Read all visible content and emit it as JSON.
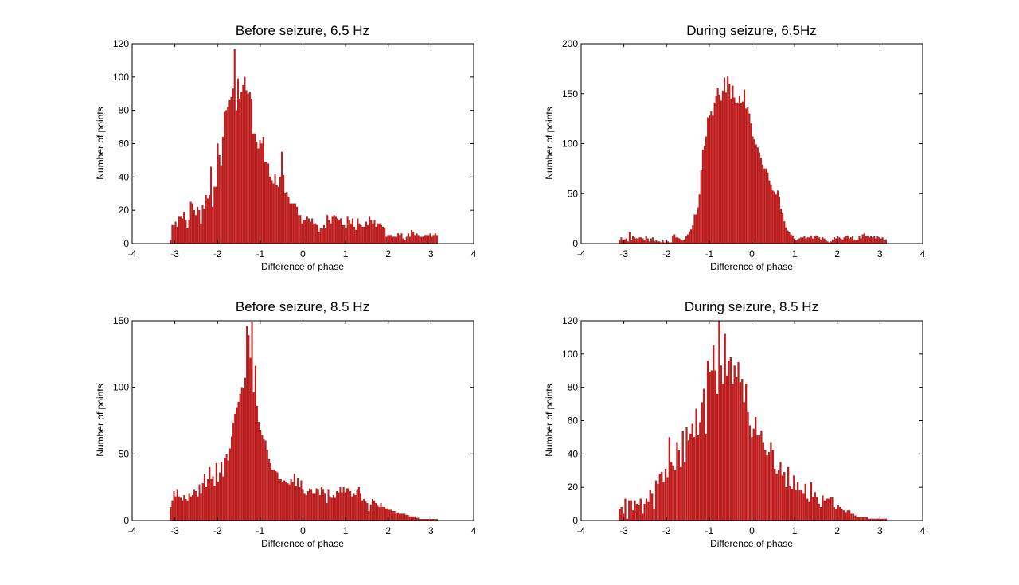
{
  "colors": {
    "bar": "#cc1818",
    "bar_edge": "#8b0000",
    "axis": "#000000",
    "background": "#ffffff"
  },
  "chart_data": [
    {
      "type": "bar",
      "title": "Before seizure, 6.5 Hz",
      "xlabel": "Difference of phase",
      "ylabel": "Number of points",
      "xlim": [
        -4,
        4
      ],
      "ylim": [
        0,
        120
      ],
      "xticks": [
        -4,
        -3,
        -2,
        -1,
        0,
        1,
        2,
        3,
        4
      ],
      "yticks": [
        0,
        20,
        40,
        60,
        80,
        100,
        120
      ],
      "x_start": -3.1,
      "x_end": 3.14,
      "values": [
        2,
        11,
        11,
        13,
        10,
        16,
        16,
        15,
        19,
        14,
        9,
        14,
        25,
        24,
        20,
        17,
        22,
        20,
        12,
        23,
        21,
        29,
        27,
        29,
        46,
        22,
        34,
        34,
        60,
        53,
        47,
        64,
        79,
        80,
        82,
        86,
        88,
        93,
        117,
        80,
        99,
        87,
        91,
        95,
        100,
        92,
        90,
        91,
        87,
        66,
        66,
        61,
        57,
        62,
        60,
        64,
        49,
        49,
        48,
        40,
        38,
        36,
        42,
        35,
        34,
        40,
        55,
        41,
        30,
        31,
        28,
        24,
        24,
        24,
        24,
        22,
        17,
        17,
        12,
        14,
        14,
        16,
        15,
        13,
        15,
        12,
        12,
        11,
        7,
        9,
        9,
        11,
        9,
        17,
        14,
        12,
        16,
        17,
        16,
        15,
        14,
        15,
        11,
        11,
        9,
        16,
        14,
        12,
        15,
        10,
        8,
        15,
        12,
        11,
        10,
        10,
        13,
        11,
        16,
        14,
        12,
        14,
        10,
        12,
        12,
        11,
        10,
        9,
        4,
        5,
        5,
        5,
        4,
        4,
        4,
        6,
        5,
        6,
        3,
        2,
        4,
        6,
        4,
        8,
        7,
        5,
        6,
        5,
        4,
        4,
        4,
        5,
        5,
        5,
        6,
        4,
        5,
        6,
        5
      ]
    },
    {
      "type": "bar",
      "title": "During seizure, 6.5Hz",
      "xlabel": "Difference of phase",
      "ylabel": "Number of points",
      "xlim": [
        -4,
        4
      ],
      "ylim": [
        0,
        200
      ],
      "xticks": [
        -4,
        -3,
        -2,
        -1,
        0,
        1,
        2,
        3,
        4
      ],
      "yticks": [
        0,
        50,
        100,
        150,
        200
      ],
      "x_start": -3.1,
      "x_end": 3.14,
      "values": [
        3,
        6,
        3,
        4,
        5,
        2,
        11,
        3,
        7,
        6,
        5,
        5,
        6,
        6,
        5,
        3,
        7,
        5,
        2,
        5,
        6,
        2,
        3,
        2,
        2,
        1,
        3,
        1,
        3,
        2,
        1,
        1,
        8,
        9,
        6,
        6,
        5,
        4,
        3,
        4,
        7,
        9,
        12,
        14,
        18,
        29,
        29,
        36,
        49,
        73,
        94,
        98,
        107,
        126,
        128,
        132,
        128,
        141,
        148,
        156,
        149,
        143,
        153,
        166,
        151,
        167,
        160,
        145,
        158,
        146,
        140,
        141,
        148,
        140,
        142,
        154,
        135,
        136,
        130,
        120,
        107,
        104,
        99,
        96,
        91,
        86,
        79,
        75,
        75,
        71,
        63,
        59,
        53,
        52,
        49,
        53,
        47,
        35,
        30,
        22,
        16,
        13,
        11,
        9,
        8,
        5,
        3,
        4,
        5,
        6,
        6,
        7,
        5,
        6,
        6,
        8,
        5,
        7,
        8,
        7,
        6,
        4,
        6,
        5,
        3,
        2,
        1,
        2,
        4,
        6,
        5,
        7,
        6,
        5,
        4,
        6,
        7,
        8,
        5,
        6,
        7,
        4,
        3,
        4,
        7,
        5,
        9,
        10,
        7,
        8,
        6,
        7,
        6,
        7,
        5,
        7,
        6,
        5,
        6,
        3,
        4
      ]
    },
    {
      "type": "bar",
      "title": "Before seizure, 8.5 Hz",
      "xlabel": "Difference of phase",
      "ylabel": "Number of points",
      "xlim": [
        -4,
        4
      ],
      "ylim": [
        0,
        150
      ],
      "xticks": [
        -4,
        -3,
        -2,
        -1,
        0,
        1,
        2,
        3,
        4
      ],
      "yticks": [
        0,
        50,
        100,
        150
      ],
      "x_start": -3.1,
      "x_end": 3.14,
      "values": [
        10,
        15,
        22,
        18,
        23,
        18,
        17,
        15,
        19,
        16,
        15,
        20,
        18,
        19,
        23,
        22,
        18,
        27,
        20,
        28,
        35,
        25,
        31,
        40,
        31,
        33,
        26,
        43,
        29,
        36,
        44,
        33,
        47,
        50,
        45,
        54,
        63,
        73,
        80,
        85,
        89,
        95,
        100,
        99,
        107,
        146,
        139,
        122,
        149,
        96,
        116,
        86,
        74,
        68,
        64,
        61,
        60,
        53,
        46,
        43,
        38,
        38,
        37,
        36,
        31,
        31,
        29,
        30,
        29,
        28,
        27,
        31,
        29,
        35,
        26,
        32,
        25,
        30,
        23,
        20,
        19,
        22,
        24,
        23,
        20,
        20,
        24,
        23,
        19,
        25,
        23,
        20,
        13,
        23,
        18,
        17,
        19,
        17,
        22,
        21,
        25,
        21,
        25,
        21,
        24,
        24,
        22,
        18,
        20,
        19,
        23,
        25,
        20,
        15,
        16,
        14,
        13,
        7,
        12,
        16,
        15,
        13,
        11,
        10,
        13,
        10,
        10,
        9,
        9,
        8,
        8,
        7,
        7,
        6,
        6,
        5,
        5,
        5,
        5,
        4,
        4,
        3,
        3,
        3,
        3,
        2,
        2,
        1,
        1,
        1,
        1,
        1,
        1,
        1,
        1,
        1,
        1,
        1
      ]
    },
    {
      "type": "bar",
      "title": "During seizure, 8.5 Hz",
      "xlabel": "Difference of phase",
      "ylabel": "Number of points",
      "xlim": [
        -4,
        4
      ],
      "ylim": [
        0,
        120
      ],
      "xticks": [
        -4,
        -3,
        -2,
        -1,
        0,
        1,
        2,
        3,
        4
      ],
      "yticks": [
        0,
        20,
        40,
        60,
        80,
        100,
        120
      ],
      "x_start": -3.1,
      "x_end": 3.14,
      "values": [
        7,
        8,
        4,
        13,
        1,
        12,
        12,
        6,
        12,
        10,
        9,
        13,
        4,
        10,
        13,
        11,
        18,
        16,
        7,
        24,
        22,
        28,
        29,
        23,
        31,
        26,
        50,
        35,
        33,
        30,
        47,
        42,
        32,
        54,
        35,
        56,
        48,
        52,
        58,
        50,
        67,
        51,
        59,
        71,
        79,
        52,
        96,
        89,
        90,
        105,
        90,
        76,
        120,
        93,
        82,
        112,
        87,
        96,
        98,
        82,
        93,
        86,
        95,
        83,
        85,
        71,
        82,
        65,
        57,
        50,
        55,
        62,
        51,
        51,
        54,
        47,
        42,
        39,
        41,
        47,
        42,
        31,
        28,
        30,
        35,
        27,
        29,
        20,
        32,
        21,
        19,
        27,
        18,
        23,
        18,
        18,
        16,
        22,
        13,
        11,
        23,
        14,
        17,
        14,
        10,
        8,
        15,
        12,
        13,
        13,
        14,
        14,
        8,
        7,
        9,
        8,
        7,
        6,
        5,
        6,
        6,
        4,
        4,
        3,
        2,
        2,
        2,
        2,
        2,
        2,
        1,
        1,
        1,
        1,
        1,
        1,
        1,
        1,
        1,
        1
      ]
    }
  ]
}
